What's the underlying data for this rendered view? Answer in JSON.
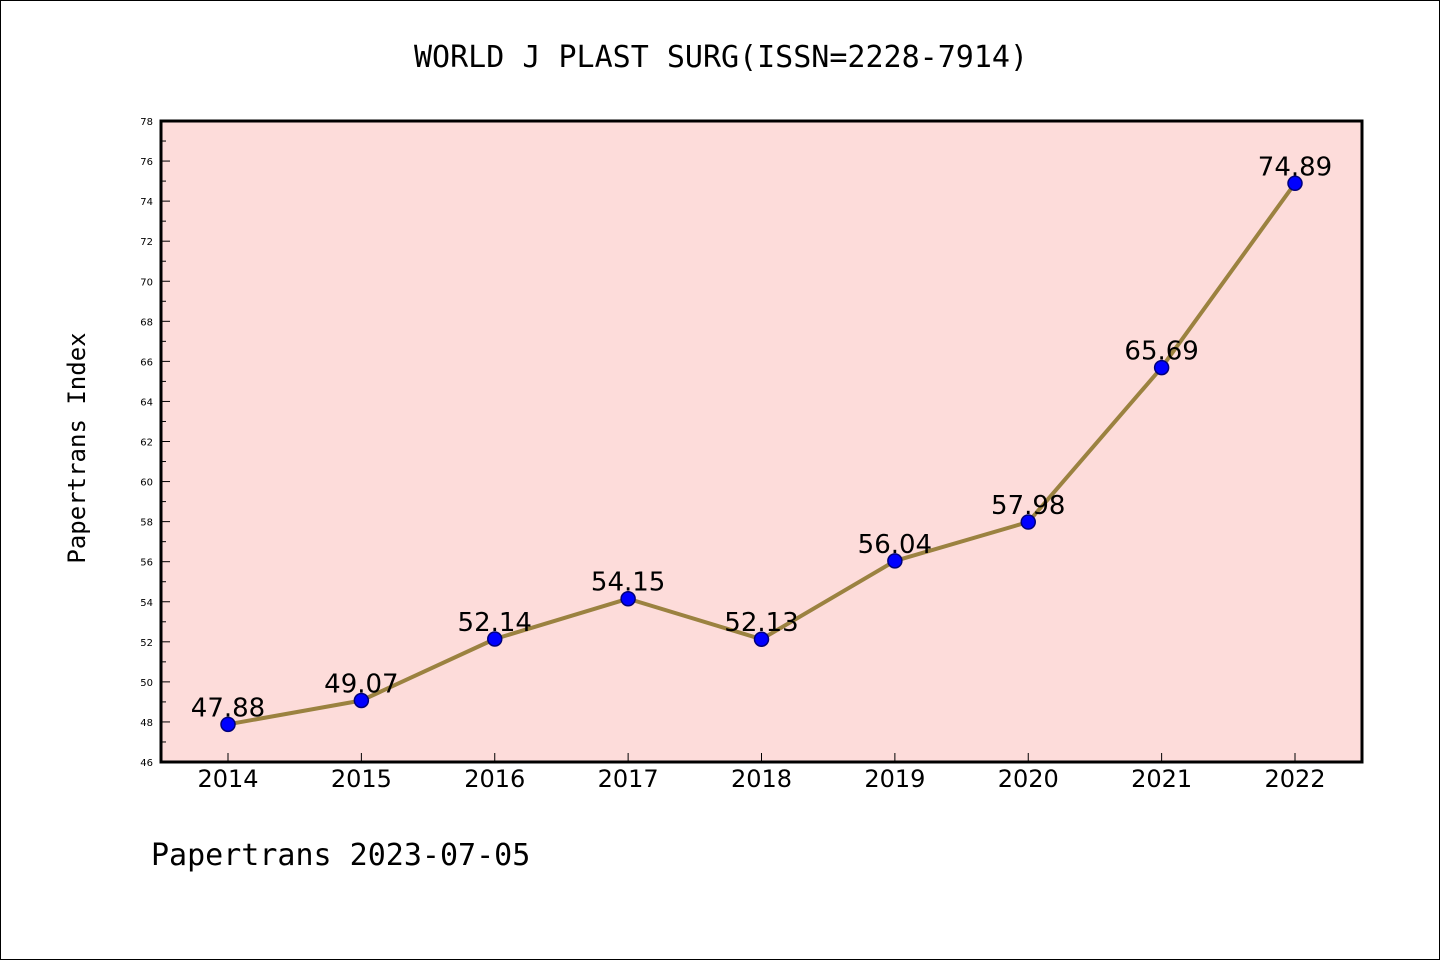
{
  "colors": {
    "plot_background": "#fddcda",
    "line": "#9b8240",
    "marker_fill": "#0000ff",
    "marker_edge": "#00007a",
    "axis": "#000000"
  },
  "chart_data": {
    "type": "line",
    "title": "WORLD J PLAST SURG(ISSN=2228-7914)",
    "xlabel": "",
    "ylabel": "Papertrans Index",
    "footer": "Papertrans 2023-07-05",
    "categories": [
      "2014",
      "2015",
      "2016",
      "2017",
      "2018",
      "2019",
      "2020",
      "2021",
      "2022"
    ],
    "series": [
      {
        "values": [
          47.88,
          49.07,
          52.14,
          54.15,
          52.13,
          56.04,
          57.98,
          65.69,
          74.89
        ],
        "labels": [
          "47.88",
          "49.07",
          "52.14",
          "54.15",
          "52.13",
          "56.04",
          "57.98",
          "65.69",
          "74.89"
        ]
      }
    ],
    "ylim": [
      46,
      78
    ],
    "yticks": [
      46,
      48,
      50,
      52,
      54,
      56,
      58,
      60,
      62,
      64,
      66,
      68,
      70,
      72,
      74,
      76,
      78
    ],
    "grid": false,
    "legend": "none"
  }
}
